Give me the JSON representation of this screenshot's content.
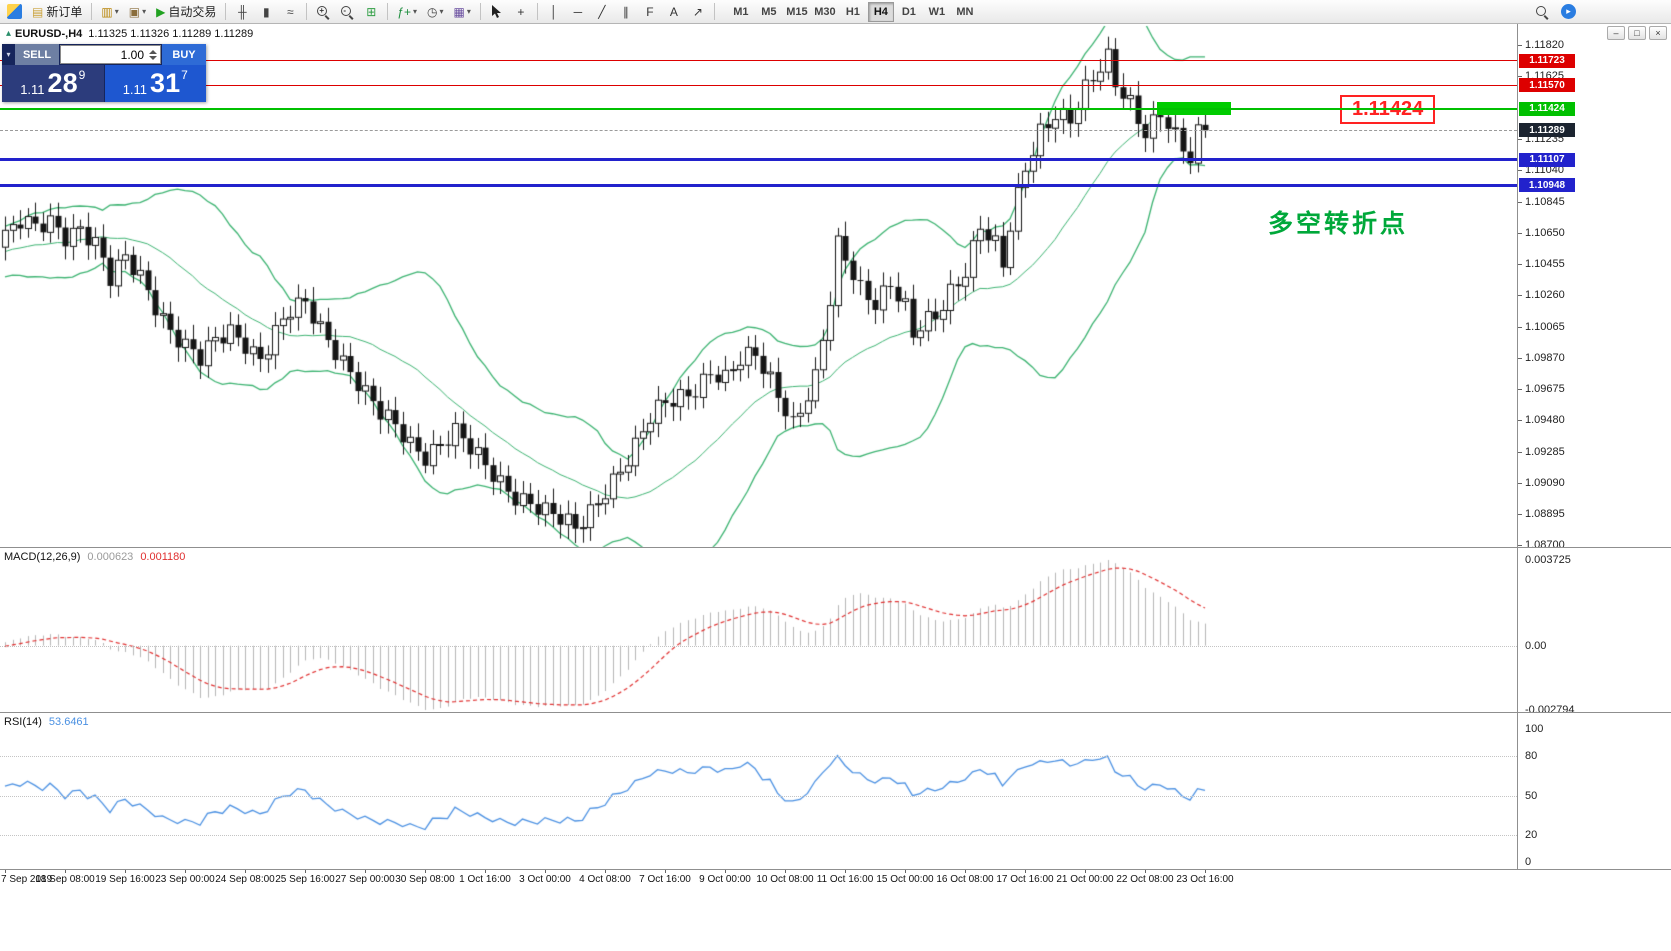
{
  "window_title_bar": {
    "symbol_title": "EURUSD-,H4",
    "ohlc": "1.11325 1.11326 1.11289 1.11289"
  },
  "toolbar": {
    "items": [
      {
        "name": "mt4-logo",
        "type": "logo"
      },
      {
        "name": "new-order-button",
        "type": "labeled",
        "glyph": "▤",
        "glyph_color": "#caa23a",
        "label": "新订单"
      },
      {
        "name": "sep"
      },
      {
        "name": "new-chart-icon",
        "glyph": "▥",
        "color": "#b8860b",
        "caret": true
      },
      {
        "name": "profiles-icon",
        "glyph": "▣",
        "color": "#8a6d3b",
        "caret": true
      },
      {
        "name": "autotrading-button",
        "type": "labeled",
        "glyph": "▶",
        "glyph_color": "#21a121",
        "label": "自动交易"
      },
      {
        "name": "sep"
      },
      {
        "name": "bar-chart-icon",
        "glyph": "╫",
        "color": "#444444"
      },
      {
        "name": "candlestick-icon",
        "glyph": "▮",
        "color": "#444444"
      },
      {
        "name": "line-chart-icon",
        "glyph": "≈",
        "color": "#444444"
      },
      {
        "name": "sep"
      },
      {
        "name": "zoom-in-icon",
        "type": "magnifier",
        "sign": "+"
      },
      {
        "name": "zoom-out-icon",
        "type": "magnifier",
        "sign": "-"
      },
      {
        "name": "tile-windows-icon",
        "glyph": "⊞",
        "color": "#2f9e44"
      },
      {
        "name": "sep"
      },
      {
        "name": "indicators-list-icon",
        "glyph": "ƒ+",
        "color": "#1e8e3e",
        "caret": true
      },
      {
        "name": "periods-icon",
        "glyph": "◷",
        "color": "#444444",
        "caret": true
      },
      {
        "name": "templates-icon",
        "glyph": "▦",
        "color": "#6a4fa0",
        "caret": true
      },
      {
        "name": "sep"
      },
      {
        "name": "cursor-icon",
        "type": "cursor"
      },
      {
        "name": "crosshair-icon",
        "glyph": "+",
        "color": "#333333"
      },
      {
        "name": "sep"
      },
      {
        "name": "vertical-line-icon",
        "glyph": "│",
        "color": "#333333"
      },
      {
        "name": "horizontal-line-icon",
        "glyph": "─",
        "color": "#333333"
      },
      {
        "name": "trendline-icon",
        "glyph": "╱",
        "color": "#333333"
      },
      {
        "name": "equidistant-channel-icon",
        "glyph": "∥",
        "color": "#333333"
      },
      {
        "name": "fibonacci-icon",
        "glyph": "F",
        "color": "#333333"
      },
      {
        "name": "text-icon",
        "glyph": "A",
        "color": "#333333"
      },
      {
        "name": "arrows-icon",
        "glyph": "↗",
        "color": "#333333"
      },
      {
        "name": "sep"
      }
    ],
    "timeframes": [
      "M1",
      "M5",
      "M15",
      "M30",
      "H1",
      "H4",
      "D1",
      "W1",
      "MN"
    ],
    "active_timeframe": "H4"
  },
  "one_click_trading": {
    "collapse_caret": "▾",
    "sell_label": "SELL",
    "buy_label": "BUY",
    "volume": "1.00",
    "sell_price": {
      "main": "1.11",
      "pips": "28",
      "point": "9"
    },
    "buy_price": {
      "main": "1.11",
      "pips": "31",
      "point": "7"
    }
  },
  "price_axis": {
    "ticks": [
      1.1182,
      1.11625,
      1.11235,
      1.1104,
      1.10845,
      1.1065,
      1.10455,
      1.1026,
      1.10065,
      1.0987,
      1.09675,
      1.0948,
      1.09285,
      1.0909,
      1.08895,
      1.087
    ]
  },
  "levels": [
    {
      "name": "resistance-line-1",
      "price": 1.11723,
      "label": "1.11723",
      "color": "#dd0000",
      "thickness": 1
    },
    {
      "name": "resistance-line-2",
      "price": 1.1157,
      "label": "1.11570",
      "color": "#dd0000",
      "thickness": 1
    },
    {
      "name": "pivot-line",
      "price": 1.11424,
      "label": "1.11424",
      "color": "#00c000",
      "thickness": 2
    },
    {
      "name": "support-line-1",
      "price": 1.11107,
      "label": "1.11107",
      "color": "#2222cc",
      "thickness": 3
    },
    {
      "name": "support-line-2",
      "price": 1.10948,
      "label": "1.10948",
      "color": "#2222cc",
      "thickness": 3
    }
  ],
  "current_price": {
    "label": "1.11289",
    "value": 1.11289
  },
  "objects": {
    "green_rectangle": {
      "start_index": 154,
      "end_index": 163,
      "top_price": 1.11465,
      "bottom_price": 1.11385,
      "color": "#00cc00"
    },
    "price_callout": {
      "text": "1.11424",
      "color": "#ff2222"
    },
    "note_text": {
      "text": "多空转折点",
      "color": "#00a83a"
    }
  },
  "macd_panel": {
    "title": "MACD(12,26,9)",
    "main_value": "0.000623",
    "signal_value": "0.001180",
    "axis_ticks": [
      0.003725,
      0,
      -0.002794
    ],
    "axis_labels": [
      "0.003725",
      "0.00",
      "-0.002794"
    ]
  },
  "rsi_panel": {
    "title": "RSI(14)",
    "value": "53.6461",
    "axis_labels": [
      "100",
      "80",
      "50",
      "20",
      "0"
    ],
    "axis_values": [
      100,
      80,
      50,
      20,
      0
    ],
    "level_lines": [
      80,
      50,
      20
    ]
  },
  "time_axis": {
    "labels": [
      "7 Sep 2019",
      "18 Sep 08:00",
      "19 Sep 16:00",
      "23 Sep 00:00",
      "24 Sep 08:00",
      "25 Sep 16:00",
      "27 Sep 00:00",
      "30 Sep 08:00",
      "1 Oct 16:00",
      "3 Oct 00:00",
      "4 Oct 08:00",
      "7 Oct 16:00",
      "9 Oct 00:00",
      "10 Oct 08:00",
      "11 Oct 16:00",
      "15 Oct 00:00",
      "16 Oct 08:00",
      "17 Oct 16:00",
      "21 Oct 00:00",
      "22 Oct 08:00",
      "23 Oct 16:00"
    ]
  },
  "chart_data": {
    "type": "candlestick",
    "symbol": "EURUSD",
    "timeframe": "H4",
    "visible_range": {
      "from": "17 Sep 2019 00:00",
      "to": "23 Oct 2019 16:00"
    },
    "candle_count": 161,
    "last_close": 1.11289,
    "price_range_approx": [
      1.0869,
      1.118
    ],
    "close_waypoints": [
      [
        0,
        1.1063
      ],
      [
        2,
        1.107
      ],
      [
        4,
        1.1066
      ],
      [
        6,
        1.1072
      ],
      [
        8,
        1.1065
      ],
      [
        10,
        1.107
      ],
      [
        12,
        1.1058
      ],
      [
        14,
        1.1034
      ],
      [
        16,
        1.1047
      ],
      [
        18,
        1.1038
      ],
      [
        20,
        1.1022
      ],
      [
        22,
        1.1006
      ],
      [
        24,
        1.0994
      ],
      [
        26,
        1.0984
      ],
      [
        28,
        1.0996
      ],
      [
        30,
        1.1004
      ],
      [
        32,
        1.0998
      ],
      [
        34,
        1.0988
      ],
      [
        36,
        1.1002
      ],
      [
        38,
        1.1014
      ],
      [
        40,
        1.1019
      ],
      [
        42,
        1.1006
      ],
      [
        44,
        1.0994
      ],
      [
        46,
        1.098
      ],
      [
        48,
        1.0964
      ],
      [
        50,
        1.095
      ],
      [
        52,
        1.0943
      ],
      [
        54,
        1.0934
      ],
      [
        56,
        1.0928
      ],
      [
        58,
        1.0935
      ],
      [
        60,
        1.094
      ],
      [
        62,
        1.0928
      ],
      [
        64,
        1.0918
      ],
      [
        66,
        1.091
      ],
      [
        68,
        1.0903
      ],
      [
        70,
        1.0898
      ],
      [
        72,
        1.089
      ],
      [
        74,
        1.0884
      ],
      [
        76,
        1.0879
      ],
      [
        78,
        1.0892
      ],
      [
        80,
        1.0907
      ],
      [
        82,
        1.0918
      ],
      [
        84,
        1.093
      ],
      [
        86,
        1.0947
      ],
      [
        88,
        1.0958
      ],
      [
        90,
        1.0964
      ],
      [
        92,
        1.097
      ],
      [
        94,
        1.0979
      ],
      [
        96,
        1.0972
      ],
      [
        98,
        1.0983
      ],
      [
        100,
        1.0988
      ],
      [
        102,
        1.0975
      ],
      [
        104,
        1.0958
      ],
      [
        105,
        1.0948
      ],
      [
        106,
        1.0955
      ],
      [
        108,
        1.0972
      ],
      [
        110,
        1.102
      ],
      [
        111,
        1.1055
      ],
      [
        112,
        1.1048
      ],
      [
        114,
        1.1032
      ],
      [
        116,
        1.1024
      ],
      [
        118,
        1.1034
      ],
      [
        120,
        1.1016
      ],
      [
        121,
        1.0998
      ],
      [
        122,
        1.1004
      ],
      [
        124,
        1.1012
      ],
      [
        126,
        1.103
      ],
      [
        128,
        1.1044
      ],
      [
        130,
        1.107
      ],
      [
        132,
        1.1055
      ],
      [
        133,
        1.1042
      ],
      [
        134,
        1.1066
      ],
      [
        136,
        1.1105
      ],
      [
        138,
        1.113
      ],
      [
        140,
        1.1142
      ],
      [
        142,
        1.1136
      ],
      [
        144,
        1.1152
      ],
      [
        146,
        1.1165
      ],
      [
        147,
        1.1172
      ],
      [
        148,
        1.1158
      ],
      [
        150,
        1.1148
      ],
      [
        152,
        1.113
      ],
      [
        154,
        1.114
      ],
      [
        156,
        1.1122
      ],
      [
        158,
        1.1108
      ],
      [
        159,
        1.1125
      ],
      [
        160,
        1.11289
      ]
    ],
    "bollinger_bands": {
      "period": 20,
      "deviation": 2,
      "color": "#3CB371"
    },
    "macd": {
      "fast": 12,
      "slow": 26,
      "signal": 9
    },
    "rsi": {
      "period": 14
    }
  }
}
